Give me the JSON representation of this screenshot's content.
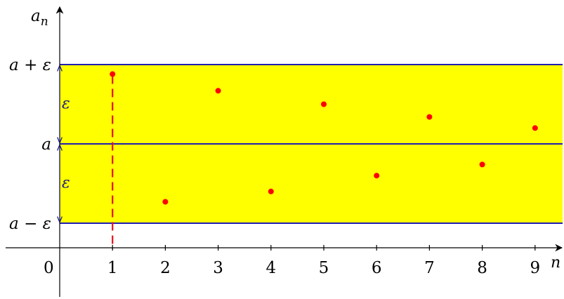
{
  "chart_data": {
    "type": "scatter",
    "title": "",
    "xlabel": "n",
    "ylabel": "a_n",
    "x": [
      1,
      2,
      3,
      4,
      5,
      6,
      7,
      8,
      9
    ],
    "y": [
      0.88,
      -0.73,
      0.67,
      -0.6,
      0.5,
      -0.4,
      0.34,
      -0.26,
      0.2
    ],
    "xlim": [
      0,
      9.3
    ],
    "ylim": [
      -1.3,
      1.6
    ],
    "x_ticks": [
      "1",
      "2",
      "3",
      "4",
      "5",
      "6",
      "7",
      "8",
      "9"
    ],
    "origin_label": "0",
    "epsilon": 1,
    "band": {
      "lower": -1,
      "center": 0,
      "upper": 1
    },
    "y_labels": {
      "upper": "a + ε",
      "center": "a",
      "lower": "a − ε"
    },
    "epsilon_label": "ε",
    "n_marker": 1,
    "colors": {
      "band_fill": "#ffff00",
      "band_lines": "#1f1fb0",
      "points": "#ff0000",
      "marker_line": "#e8101a",
      "axes": "#000000"
    }
  }
}
